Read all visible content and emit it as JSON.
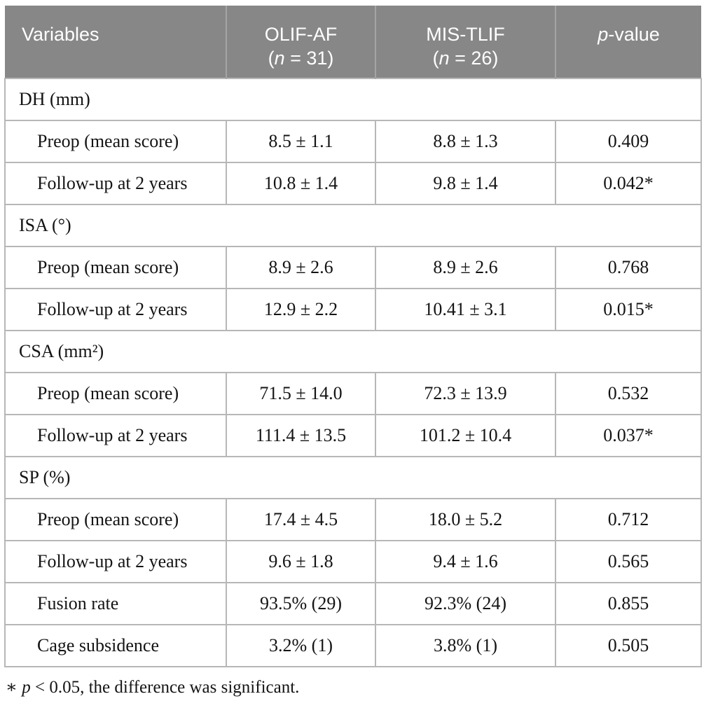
{
  "header": {
    "variables": "Variables",
    "olif": {
      "line1": "OLIF-AF",
      "open": "(",
      "n": "n",
      "rest": " = 31)"
    },
    "mis": {
      "line1": "MIS-TLIF",
      "open": "(",
      "n": "n",
      "rest": " = 26)"
    },
    "pvalue": {
      "p": "p",
      "rest": "-value"
    }
  },
  "rows": [
    {
      "type": "section",
      "label": "DH (mm)"
    },
    {
      "type": "data",
      "label": "Preop (mean score)",
      "olif": "8.5 ± 1.1",
      "mis": "8.8 ± 1.3",
      "p": "0.409"
    },
    {
      "type": "data",
      "label": "Follow-up at 2 years",
      "olif": "10.8 ± 1.4",
      "mis": "9.8 ± 1.4",
      "p": "0.042*"
    },
    {
      "type": "section",
      "label": "ISA (°)"
    },
    {
      "type": "data",
      "label": "Preop (mean score)",
      "olif": "8.9 ± 2.6",
      "mis": "8.9 ± 2.6",
      "p": "0.768"
    },
    {
      "type": "data",
      "label": "Follow-up at 2 years",
      "olif": "12.9 ± 2.2",
      "mis": "10.41 ± 3.1",
      "p": "0.015*"
    },
    {
      "type": "section",
      "label": "CSA (mm²)"
    },
    {
      "type": "data",
      "label": "Preop (mean score)",
      "olif": "71.5 ± 14.0",
      "mis": "72.3 ± 13.9",
      "p": "0.532"
    },
    {
      "type": "data",
      "label": "Follow-up at 2 years",
      "olif": "111.4 ± 13.5",
      "mis": "101.2 ± 10.4",
      "p": "0.037*"
    },
    {
      "type": "section",
      "label": "SP (%)"
    },
    {
      "type": "data",
      "label": "Preop (mean score)",
      "olif": "17.4 ± 4.5",
      "mis": "18.0 ± 5.2",
      "p": "0.712"
    },
    {
      "type": "data",
      "label": "Follow-up at 2 years",
      "olif": "9.6 ± 1.8",
      "mis": "9.4 ± 1.6",
      "p": "0.565"
    },
    {
      "type": "data",
      "label": "Fusion rate",
      "olif": "93.5% (29)",
      "mis": "92.3% (24)",
      "p": "0.855"
    },
    {
      "type": "data",
      "label": "Cage subsidence",
      "olif": "3.2% (1)",
      "mis": "3.8% (1)",
      "p": "0.505"
    }
  ],
  "footnote": {
    "asterisk": "∗ ",
    "p": "p",
    "rest": " < 0.05, the difference was significant."
  },
  "colors": {
    "header_bg": "#878787",
    "header_divider": "#a4a4a4",
    "body_border": "#b7b7b7",
    "text": "#141414",
    "header_text": "#ffffff"
  }
}
